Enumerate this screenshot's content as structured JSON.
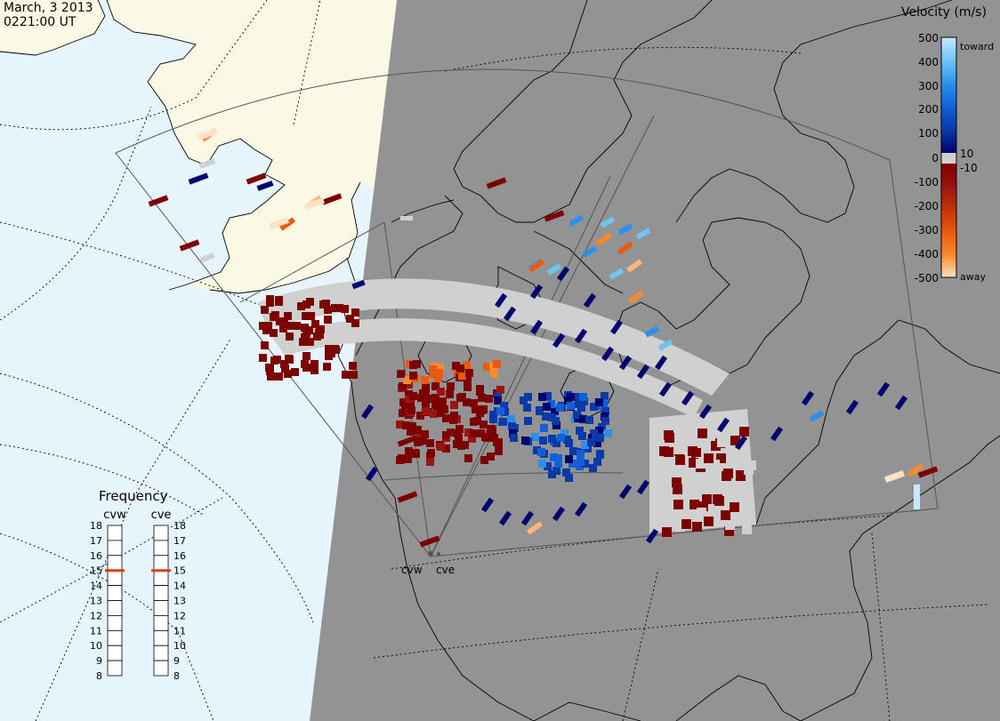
{
  "header": {
    "date": "March, 3 2013",
    "time": "0221:00 UT"
  },
  "colors": {
    "ocean_sunlit": "#e6f4fc",
    "land_sunlit": "#fbf8e6",
    "night": "#939393",
    "ground_scatter": "#d0d0d0",
    "coast": "#000000"
  },
  "velocity_scale": {
    "title": "Velocity (m/s)",
    "ticks": [
      "500",
      "400",
      "300",
      "200",
      "100",
      "10",
      "0",
      "-10",
      "-100",
      "-200",
      "-300",
      "-400",
      "-500"
    ],
    "label_toward": "toward",
    "label_away": "away",
    "colors": [
      "#fde2c5",
      "#fcb57a",
      "#f98a2c",
      "#ea5a0e",
      "#c6320c",
      "#9a1410",
      "#7d0000",
      "#d0d0d0",
      "#00006e",
      "#0a3aa8",
      "#1060d8",
      "#2a90ec",
      "#6ec4f6",
      "#c8e8fd"
    ]
  },
  "frequency": {
    "title": "Frequency",
    "radars": [
      "cvw",
      "cve"
    ],
    "ticks": [
      "18",
      "17",
      "16",
      "15",
      "14",
      "13",
      "12",
      "11",
      "10",
      "9",
      "8"
    ],
    "cvw_value": 15,
    "cve_value": 15
  },
  "radar_sites": [
    {
      "name": "cvw"
    },
    {
      "name": "cve"
    }
  ]
}
